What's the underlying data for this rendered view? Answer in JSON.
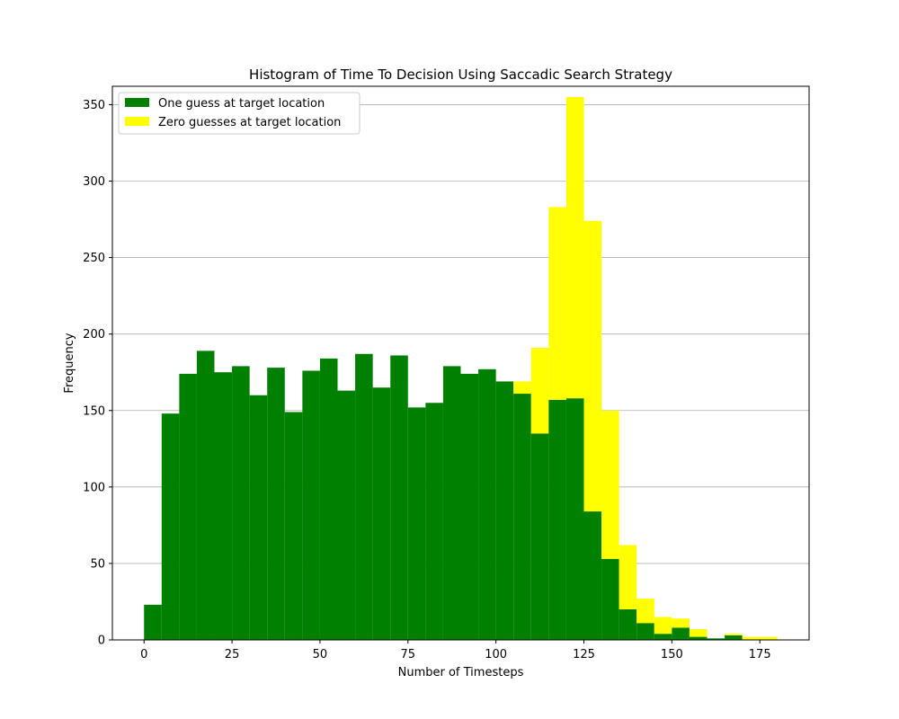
{
  "chart_data": {
    "type": "bar",
    "subtype": "stacked-histogram",
    "title": "Histogram of Time To Decision Using Saccadic Search Strategy",
    "xlabel": "Number of Timesteps",
    "ylabel": "Frequency",
    "xlim": [
      -9,
      189
    ],
    "ylim": [
      0,
      362
    ],
    "xticks": [
      0,
      25,
      50,
      75,
      100,
      125,
      150,
      175
    ],
    "yticks": [
      0,
      50,
      100,
      150,
      200,
      250,
      300,
      350
    ],
    "grid": "horizontal",
    "legend_placement": "top-left",
    "bin_edges": [
      0,
      5,
      10,
      15,
      20,
      25,
      30,
      35,
      40,
      45,
      50,
      55,
      60,
      65,
      70,
      75,
      80,
      85,
      90,
      95,
      100,
      105,
      110,
      115,
      120,
      125,
      130,
      135,
      140,
      145,
      150,
      155,
      160,
      165,
      170,
      175,
      180
    ],
    "series": [
      {
        "name": "One guess at target location",
        "color": "#008000",
        "values": [
          23,
          148,
          174,
          189,
          175,
          179,
          160,
          178,
          149,
          176,
          184,
          163,
          187,
          165,
          186,
          152,
          155,
          179,
          174,
          177,
          169,
          161,
          135,
          157,
          158,
          84,
          53,
          20,
          11,
          4,
          8,
          2,
          1,
          3,
          0,
          0
        ]
      },
      {
        "name": "Zero guesses at target location",
        "color": "#ffff00",
        "values": [
          0,
          0,
          0,
          0,
          0,
          0,
          0,
          0,
          0,
          0,
          0,
          0,
          0,
          0,
          0,
          0,
          0,
          0,
          0,
          0,
          0,
          8,
          56,
          126,
          197,
          190,
          97,
          42,
          16,
          11,
          6,
          5,
          0,
          1,
          2,
          2
        ]
      }
    ]
  }
}
